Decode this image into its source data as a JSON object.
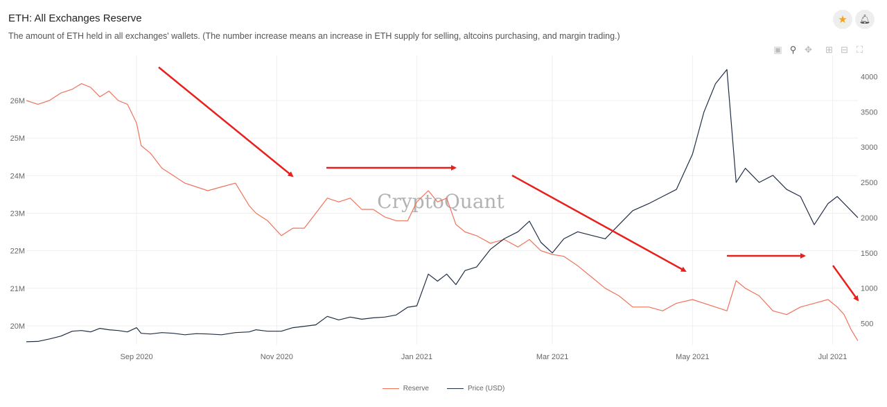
{
  "header": {
    "title": "ETH: All Exchanges Reserve",
    "subtitle": "The amount of ETH held in all exchanges' wallets. (The number increase means an increase in ETH supply for selling, altcoins purchasing, and margin trading.)"
  },
  "toolbar": {
    "star_icon": "star-icon",
    "bell_icon": "bell-icon",
    "modebar": [
      "camera-icon",
      "zoom-icon",
      "pan-icon",
      "zoom-in-icon",
      "zoom-out-icon",
      "autoscale-icon"
    ]
  },
  "watermark": "CryptoQuant",
  "chart_data": {
    "type": "line",
    "x_range": [
      "2020-07-15",
      "2021-07-12"
    ],
    "x_ticks": [
      {
        "date": "2020-09-01",
        "label": "Sep 2020"
      },
      {
        "date": "2020-11-01",
        "label": "Nov 2020"
      },
      {
        "date": "2021-01-01",
        "label": "Jan 2021"
      },
      {
        "date": "2021-03-01",
        "label": "Mar 2021"
      },
      {
        "date": "2021-05-01",
        "label": "May 2021"
      },
      {
        "date": "2021-07-01",
        "label": "Jul 2021"
      }
    ],
    "y_left": {
      "range": [
        19.5,
        27.2
      ],
      "ticks": [
        20,
        21,
        22,
        23,
        24,
        25,
        26
      ],
      "tick_labels": [
        "20M",
        "21M",
        "22M",
        "23M",
        "24M",
        "25M",
        "26M"
      ],
      "unit": "M"
    },
    "y_right": {
      "range": [
        200,
        4300
      ],
      "ticks": [
        500,
        1000,
        1500,
        2000,
        2500,
        3000,
        3500,
        4000
      ]
    },
    "grid": true,
    "legend_position": "bottom-center",
    "series": [
      {
        "name": "Reserve",
        "axis": "left",
        "color": "#f0725a",
        "x": [
          "2020-07-15",
          "2020-07-20",
          "2020-07-25",
          "2020-07-30",
          "2020-08-04",
          "2020-08-08",
          "2020-08-12",
          "2020-08-16",
          "2020-08-20",
          "2020-08-24",
          "2020-08-28",
          "2020-09-01",
          "2020-09-03",
          "2020-09-07",
          "2020-09-12",
          "2020-09-17",
          "2020-09-22",
          "2020-09-27",
          "2020-10-02",
          "2020-10-08",
          "2020-10-14",
          "2020-10-20",
          "2020-10-23",
          "2020-10-28",
          "2020-11-03",
          "2020-11-08",
          "2020-11-13",
          "2020-11-18",
          "2020-11-23",
          "2020-11-28",
          "2020-12-03",
          "2020-12-08",
          "2020-12-13",
          "2020-12-18",
          "2020-12-23",
          "2020-12-28",
          "2021-01-01",
          "2021-01-06",
          "2021-01-10",
          "2021-01-14",
          "2021-01-18",
          "2021-01-22",
          "2021-01-27",
          "2021-02-02",
          "2021-02-08",
          "2021-02-14",
          "2021-02-19",
          "2021-02-24",
          "2021-03-01",
          "2021-03-06",
          "2021-03-12",
          "2021-03-18",
          "2021-03-24",
          "2021-03-30",
          "2021-04-05",
          "2021-04-12",
          "2021-04-18",
          "2021-04-24",
          "2021-05-01",
          "2021-05-06",
          "2021-05-11",
          "2021-05-16",
          "2021-05-20",
          "2021-05-24",
          "2021-05-30",
          "2021-06-05",
          "2021-06-11",
          "2021-06-17",
          "2021-06-23",
          "2021-06-29",
          "2021-07-03",
          "2021-07-06",
          "2021-07-09",
          "2021-07-12"
        ],
        "values": [
          26.0,
          25.9,
          26.0,
          26.2,
          26.3,
          26.45,
          26.35,
          26.1,
          26.25,
          26.0,
          25.9,
          25.4,
          24.8,
          24.6,
          24.2,
          24.0,
          23.8,
          23.7,
          23.6,
          23.7,
          23.8,
          23.2,
          23.0,
          22.8,
          22.4,
          22.6,
          22.6,
          23.0,
          23.4,
          23.3,
          23.4,
          23.1,
          23.1,
          22.9,
          22.8,
          22.8,
          23.3,
          23.6,
          23.3,
          23.4,
          22.7,
          22.5,
          22.4,
          22.2,
          22.3,
          22.1,
          22.3,
          22.0,
          21.9,
          21.85,
          21.6,
          21.3,
          21.0,
          20.8,
          20.5,
          20.5,
          20.4,
          20.6,
          20.7,
          20.6,
          20.5,
          20.4,
          21.2,
          21.0,
          20.8,
          20.4,
          20.3,
          20.5,
          20.6,
          20.7,
          20.5,
          20.3,
          19.9,
          19.6
        ]
      },
      {
        "name": "Price (USD)",
        "axis": "right",
        "color": "#1f2d44",
        "x": [
          "2020-07-15",
          "2020-07-20",
          "2020-07-25",
          "2020-07-30",
          "2020-08-04",
          "2020-08-08",
          "2020-08-12",
          "2020-08-16",
          "2020-08-20",
          "2020-08-24",
          "2020-08-28",
          "2020-09-01",
          "2020-09-03",
          "2020-09-07",
          "2020-09-12",
          "2020-09-17",
          "2020-09-22",
          "2020-09-27",
          "2020-10-02",
          "2020-10-08",
          "2020-10-14",
          "2020-10-20",
          "2020-10-23",
          "2020-10-28",
          "2020-11-03",
          "2020-11-08",
          "2020-11-13",
          "2020-11-18",
          "2020-11-23",
          "2020-11-28",
          "2020-12-03",
          "2020-12-08",
          "2020-12-13",
          "2020-12-18",
          "2020-12-23",
          "2020-12-28",
          "2021-01-01",
          "2021-01-06",
          "2021-01-10",
          "2021-01-14",
          "2021-01-18",
          "2021-01-22",
          "2021-01-27",
          "2021-02-02",
          "2021-02-08",
          "2021-02-14",
          "2021-02-19",
          "2021-02-24",
          "2021-03-01",
          "2021-03-06",
          "2021-03-12",
          "2021-03-18",
          "2021-03-24",
          "2021-03-30",
          "2021-04-05",
          "2021-04-12",
          "2021-04-18",
          "2021-04-24",
          "2021-05-01",
          "2021-05-06",
          "2021-05-11",
          "2021-05-16",
          "2021-05-20",
          "2021-05-24",
          "2021-05-30",
          "2021-06-05",
          "2021-06-11",
          "2021-06-17",
          "2021-06-23",
          "2021-06-29",
          "2021-07-03",
          "2021-07-06",
          "2021-07-09",
          "2021-07-12"
        ],
        "values": [
          240,
          245,
          280,
          320,
          390,
          400,
          380,
          430,
          410,
          400,
          380,
          440,
          360,
          350,
          370,
          360,
          340,
          355,
          350,
          340,
          370,
          380,
          410,
          390,
          390,
          440,
          460,
          480,
          600,
          550,
          590,
          560,
          580,
          590,
          620,
          730,
          750,
          1200,
          1100,
          1200,
          1050,
          1250,
          1300,
          1550,
          1700,
          1800,
          1950,
          1650,
          1500,
          1700,
          1800,
          1750,
          1700,
          1900,
          2100,
          2200,
          2300,
          2400,
          2900,
          3500,
          3900,
          4100,
          2500,
          2700,
          2500,
          2600,
          2400,
          2300,
          1900,
          2200,
          2300,
          2200,
          2100,
          2000
        ]
      }
    ]
  }
}
